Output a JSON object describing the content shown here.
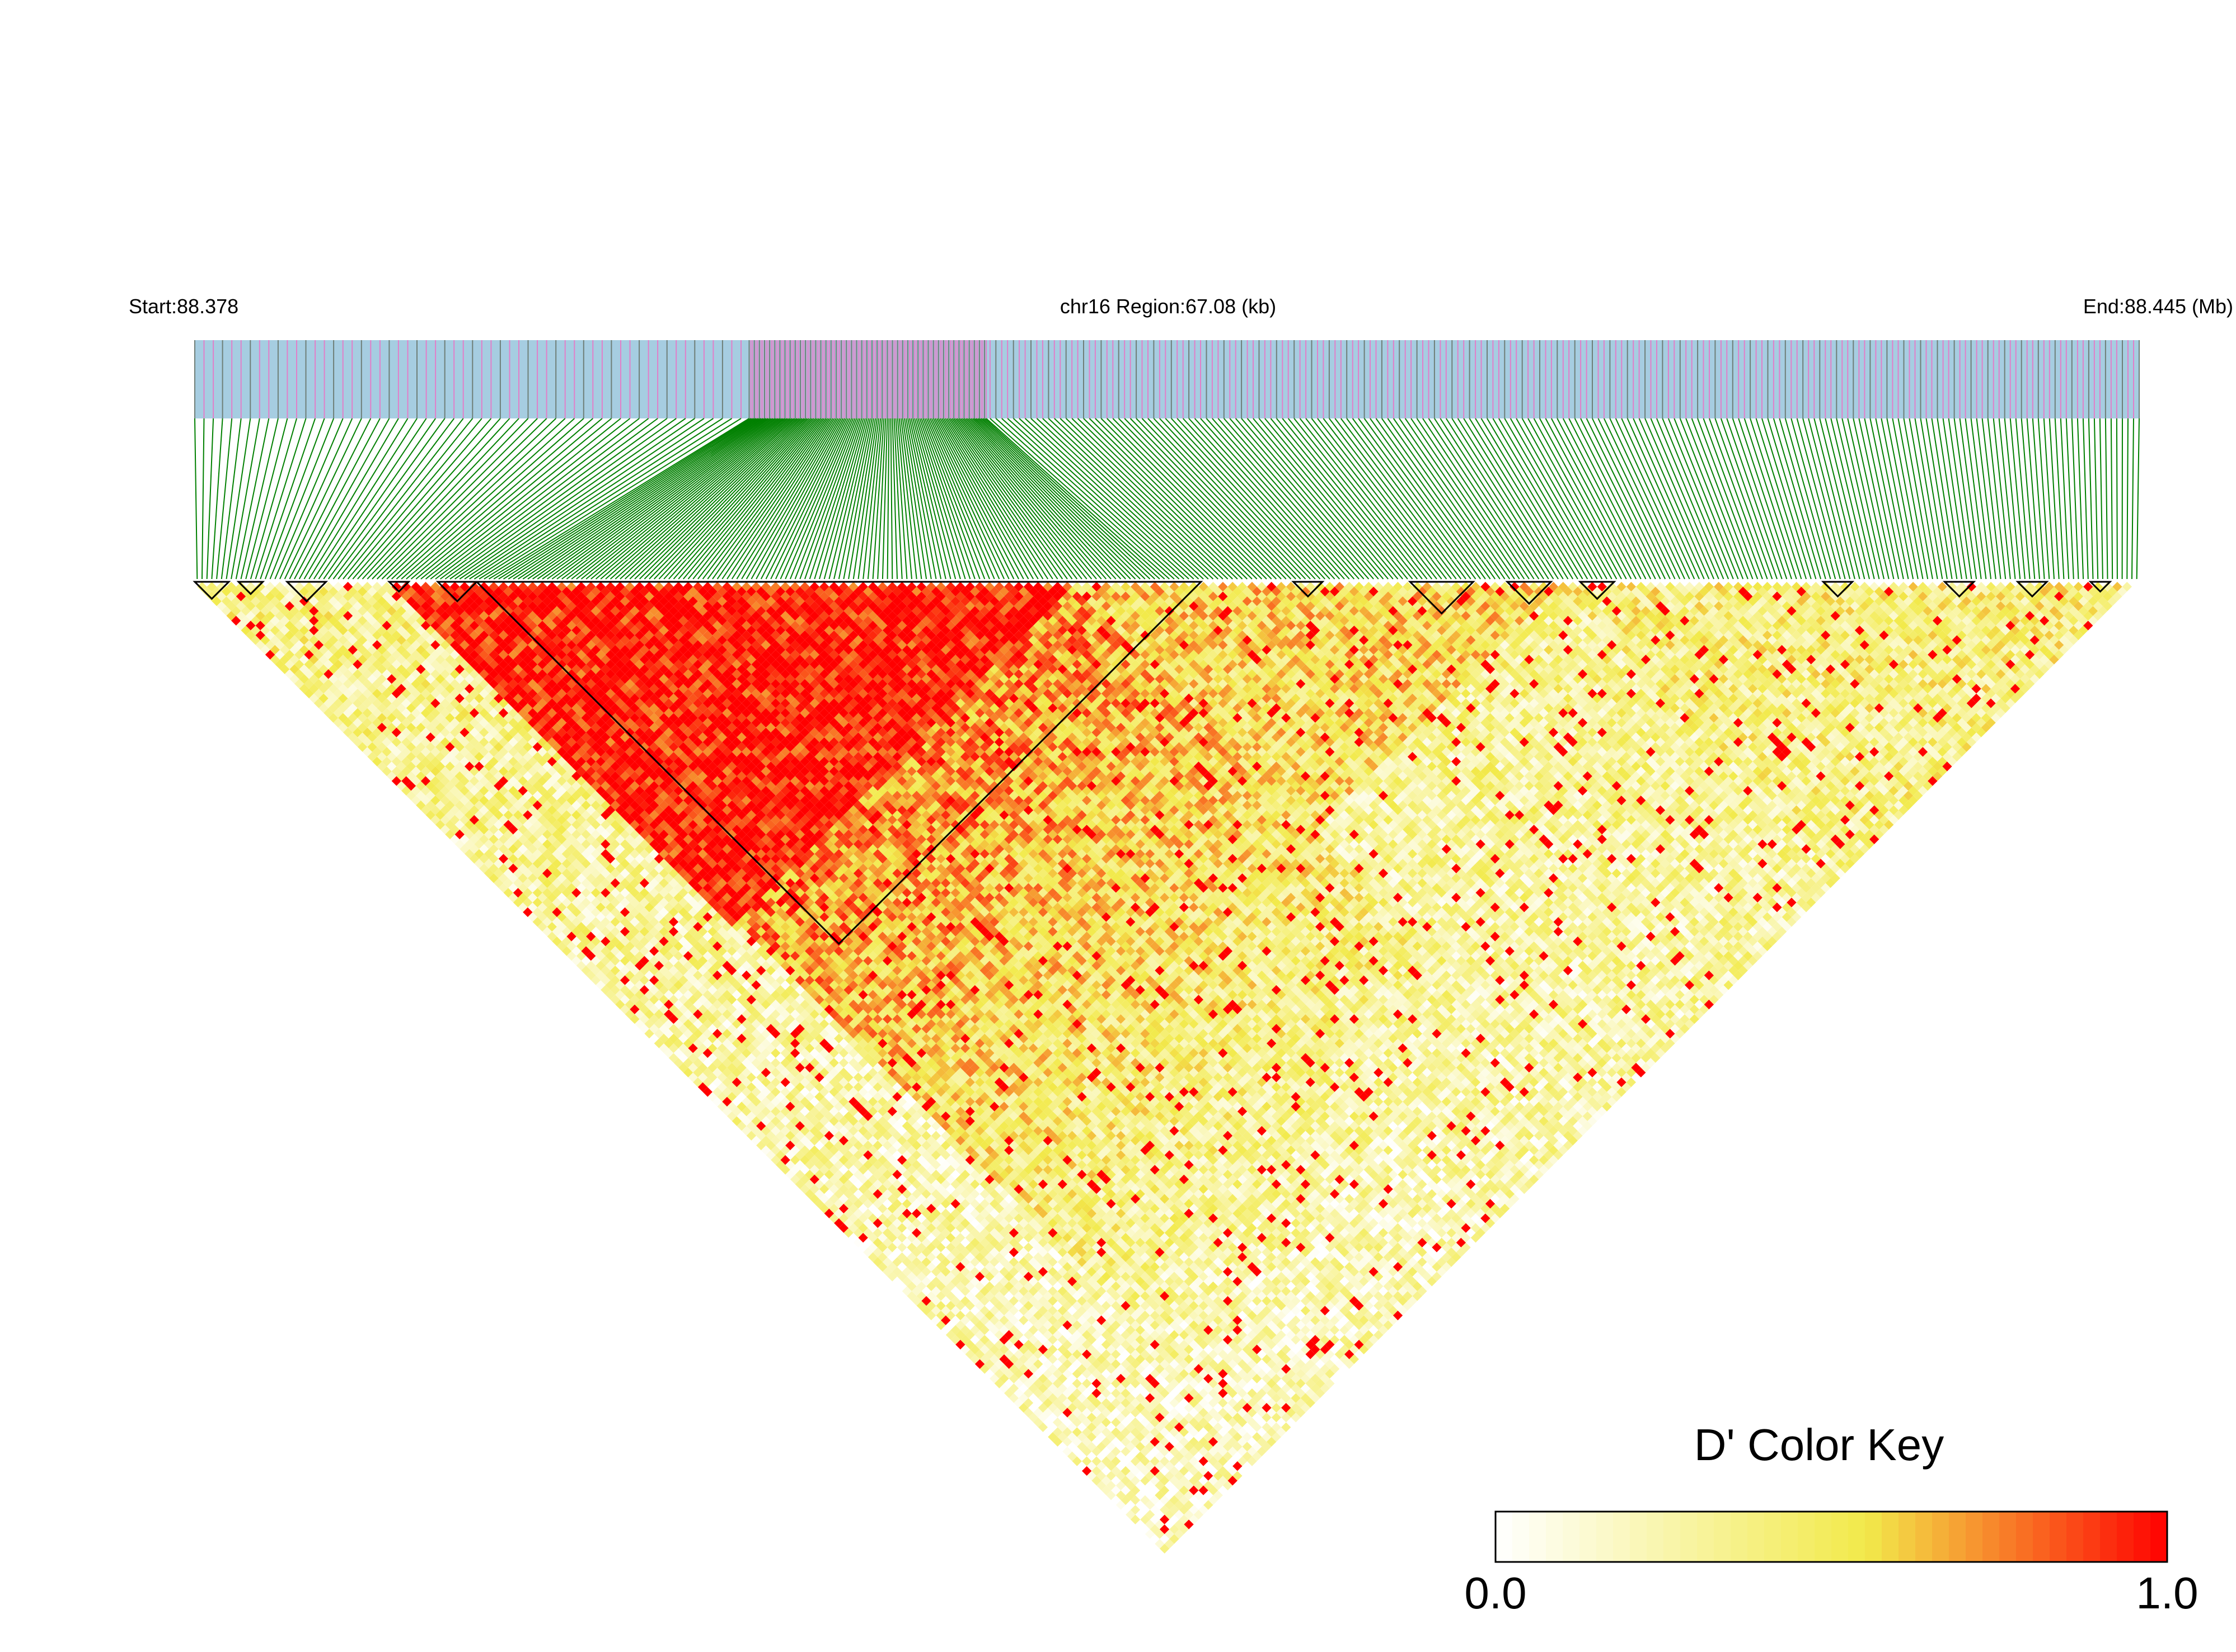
{
  "chart_data": {
    "type": "heatmap",
    "subtype": "linkage-disequilibrium-triangle",
    "title": "",
    "region": {
      "chromosome": "chr16",
      "start_mb": 88.378,
      "end_mb": 88.445,
      "length_kb": 67.08,
      "start_label": "Start:88.378",
      "region_label": "chr16 Region:67.08 (kb)",
      "end_label": "End:88.445 (Mb)"
    },
    "snp_count_estimate": 400,
    "haplotype_blocks_snp_index": [
      [
        0,
        6
      ],
      [
        9,
        13
      ],
      [
        19,
        26
      ],
      [
        40,
        43
      ],
      [
        50,
        57
      ],
      [
        58,
        206
      ],
      [
        226,
        231
      ],
      [
        250,
        262
      ],
      [
        270,
        278
      ],
      [
        285,
        291
      ],
      [
        335,
        340
      ],
      [
        360,
        365
      ],
      [
        375,
        380
      ],
      [
        390,
        393
      ]
    ],
    "ld_pattern_regions": [
      {
        "snps": [
          40,
          180
        ],
        "typical_dprime": 0.96
      },
      {
        "snps": [
          0,
          40
        ],
        "typical_dprime": 0.25
      },
      {
        "snps": [
          180,
          280
        ],
        "typical_dprime": 0.55
      },
      {
        "snps": [
          280,
          400
        ],
        "typical_dprime": 0.4
      }
    ],
    "colorbar": {
      "title": "D' Color Key",
      "min": 0.0,
      "max": 1.0,
      "min_label": "0.0",
      "max_label": "1.0",
      "colors": [
        "#ffffff",
        "#f2ea4b",
        "#ff0000"
      ]
    },
    "colors": {
      "snp_track": "#a6cde1",
      "snp_tick_pink": "#e17fc9",
      "snp_tick_grey": "#6f7f78",
      "connector": "#008000",
      "block_outline": "#000000"
    }
  }
}
